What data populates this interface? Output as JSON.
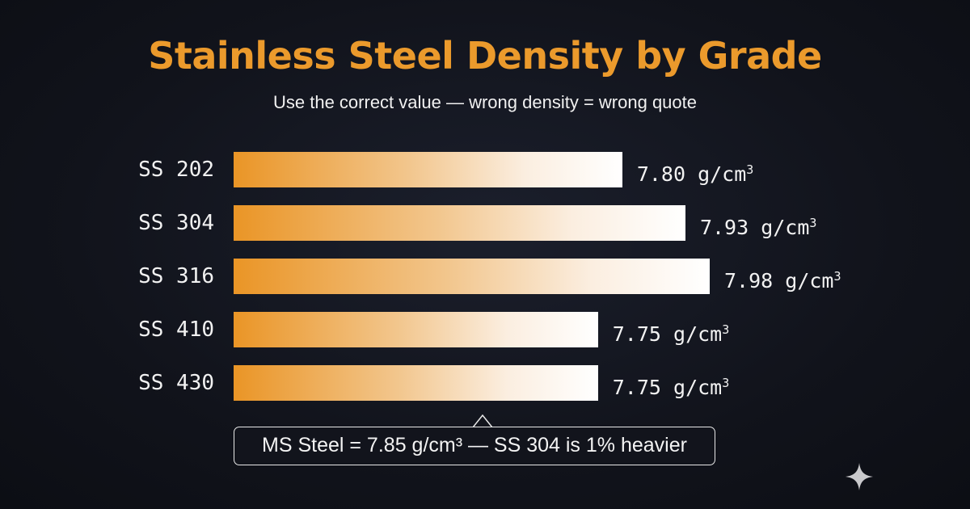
{
  "chart_data": {
    "type": "bar",
    "orientation": "horizontal",
    "title": "Stainless Steel Density by Grade",
    "subtitle": "Use the correct value — wrong density = wrong quote",
    "categories": [
      "SS 202",
      "SS 304",
      "SS 316",
      "SS 410",
      "SS 430"
    ],
    "values": [
      7.8,
      7.93,
      7.98,
      7.75,
      7.75
    ],
    "value_labels": [
      "7.80",
      "7.93",
      "7.98",
      "7.75",
      "7.75"
    ],
    "unit": "g/cm",
    "unit_superscript": "3",
    "grid": false,
    "legend": "none",
    "bar_gradient": [
      "#ea9526",
      "#ffffff"
    ],
    "annotation": {
      "text": "MS Steel = 7.85 g/cm³ — SS 304 is 1% heavier",
      "reference_value": 7.85
    }
  },
  "colors": {
    "title": "#eb9a2c",
    "text": "#f2f2f2",
    "background": "#11131b"
  },
  "icons": {
    "corner": "sparkle-icon"
  }
}
